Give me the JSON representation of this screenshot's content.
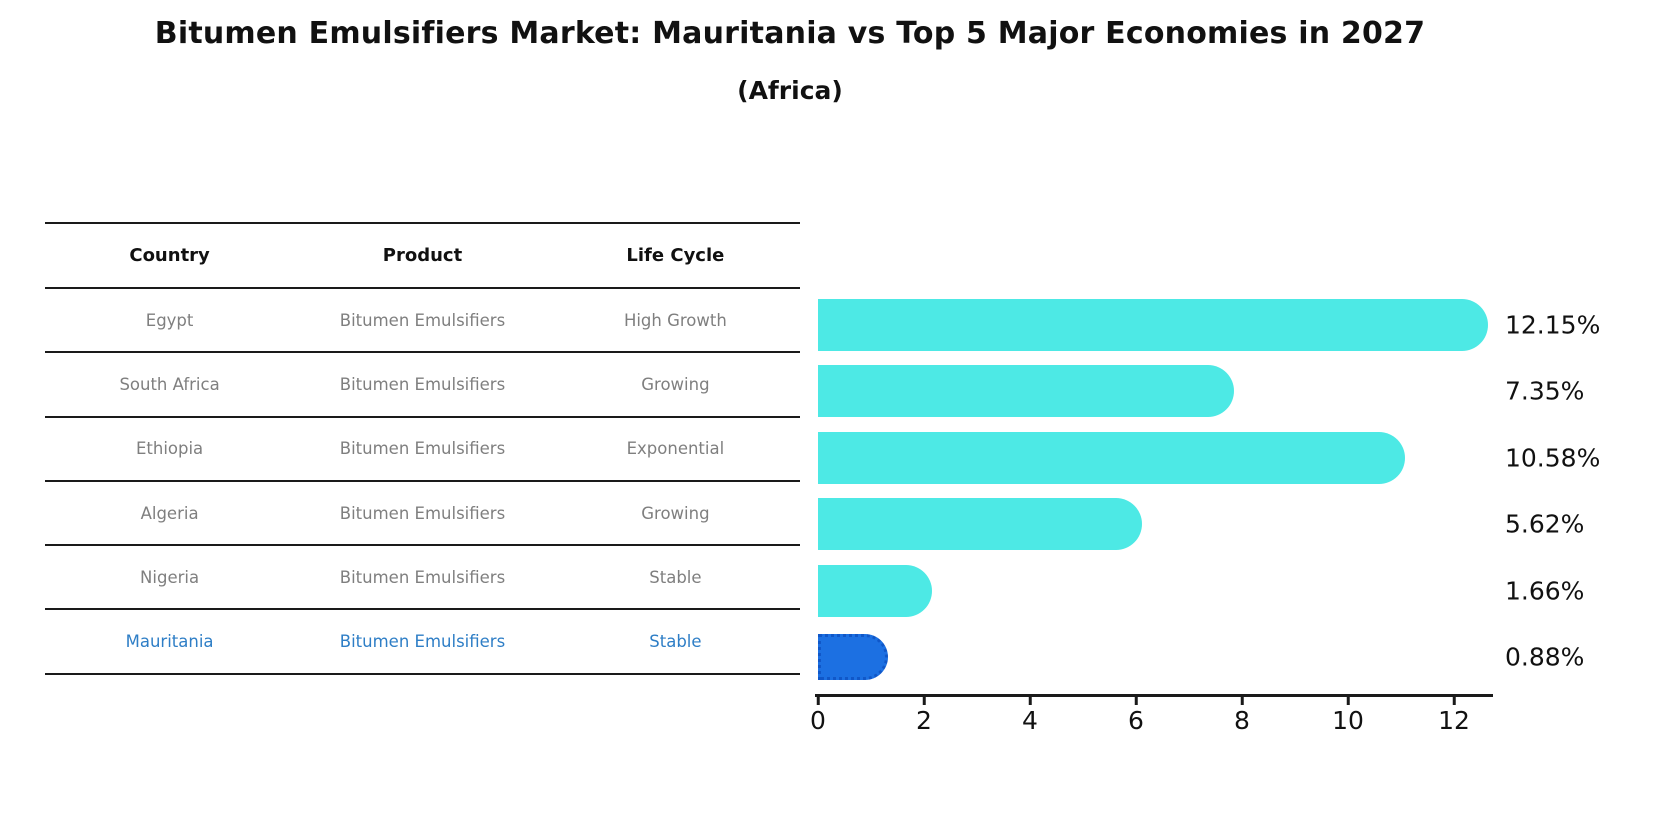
{
  "title": "Bitumen Emulsifiers Market: Mauritania vs Top 5 Major Economies in 2027",
  "subtitle": "(Africa)",
  "table": {
    "headers": [
      "Country",
      "Product",
      "Life Cycle"
    ],
    "rows": [
      {
        "country": "Egypt",
        "product": "Bitumen Emulsifiers",
        "life_cycle": "High Growth",
        "highlight": false
      },
      {
        "country": "South Africa",
        "product": "Bitumen Emulsifiers",
        "life_cycle": "Growing",
        "highlight": false
      },
      {
        "country": "Ethiopia",
        "product": "Bitumen Emulsifiers",
        "life_cycle": "Exponential",
        "highlight": false
      },
      {
        "country": "Algeria",
        "product": "Bitumen Emulsifiers",
        "life_cycle": "Growing",
        "highlight": false
      },
      {
        "country": "Nigeria",
        "product": "Bitumen Emulsifiers",
        "life_cycle": "Stable",
        "highlight": false
      },
      {
        "country": "Mauritania",
        "product": "Bitumen Emulsifiers",
        "life_cycle": "Stable",
        "highlight": true
      }
    ]
  },
  "chart_data": {
    "type": "bar",
    "orientation": "horizontal",
    "categories": [
      "Egypt",
      "South Africa",
      "Ethiopia",
      "Algeria",
      "Nigeria",
      "Mauritania"
    ],
    "values": [
      12.15,
      7.35,
      10.58,
      5.62,
      1.66,
      0.88
    ],
    "value_labels": [
      "12.15%",
      "7.35%",
      "10.58%",
      "5.62%",
      "1.66%",
      "0.88%"
    ],
    "x_ticks": [
      0,
      2,
      4,
      6,
      8,
      10,
      12
    ],
    "xlim": [
      0,
      12.75
    ],
    "grid": false,
    "legend": "none",
    "bar_color": "#4de9e5",
    "highlight_color": "#1c70e2",
    "highlight_index": 5,
    "xlabel": "",
    "ylabel": ""
  },
  "colors": {
    "title_text": "#111111",
    "table_line": "#1a1a1a",
    "table_text_gray": "#7f7f7f",
    "highlight_row_text": "#2e7ec6",
    "axis_text": "#111111"
  }
}
